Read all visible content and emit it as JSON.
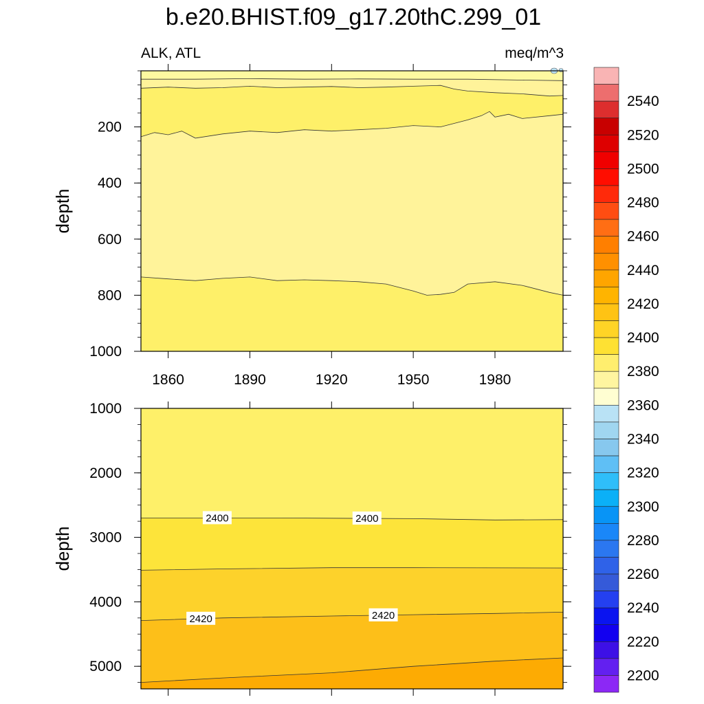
{
  "figure": {
    "title": "b.e20.BHIST.f09_g17.20thC.299_01",
    "left_string": "ALK, ATL",
    "right_string": "meq/m^3"
  },
  "chart_data": [
    {
      "type": "contour",
      "panel": "upper",
      "ylabel": "depth",
      "ylim": [
        0,
        1000
      ],
      "y_reversed": true,
      "yticks": [
        200,
        400,
        600,
        800,
        1000
      ],
      "xlim": [
        1850,
        2005
      ],
      "xticks": [
        1860,
        1890,
        1920,
        1950,
        1980
      ],
      "xtick_labels": [
        "1860",
        "1890",
        "1920",
        "1950",
        "1980"
      ],
      "contours": [
        {
          "name": "surface-band",
          "x": [
            1850,
            1870,
            1890,
            1910,
            1930,
            1950,
            1970,
            1990,
            2005
          ],
          "y": [
            30,
            30,
            28,
            30,
            29,
            30,
            30,
            33,
            35
          ]
        },
        {
          "name": "upper-2390",
          "x": [
            1850,
            1860,
            1870,
            1880,
            1890,
            1900,
            1910,
            1920,
            1930,
            1940,
            1950,
            1960,
            1965,
            1970,
            1980,
            1990,
            2000,
            2005
          ],
          "y": [
            62,
            58,
            62,
            60,
            55,
            60,
            58,
            56,
            60,
            58,
            55,
            52,
            65,
            72,
            78,
            82,
            90,
            88
          ]
        },
        {
          "name": "upper-2400",
          "x": [
            1850,
            1855,
            1860,
            1865,
            1870,
            1880,
            1890,
            1900,
            1910,
            1920,
            1930,
            1940,
            1950,
            1960,
            1970,
            1975,
            1978,
            1980,
            1985,
            1990,
            2000,
            2005
          ],
          "y": [
            235,
            220,
            228,
            215,
            240,
            225,
            215,
            220,
            210,
            215,
            210,
            205,
            195,
            200,
            175,
            160,
            145,
            165,
            155,
            170,
            160,
            155
          ]
        },
        {
          "name": "lower-2390",
          "x": [
            1850,
            1860,
            1870,
            1880,
            1890,
            1900,
            1910,
            1920,
            1930,
            1940,
            1950,
            1955,
            1960,
            1965,
            1970,
            1980,
            1990,
            2000,
            2005
          ],
          "y": [
            735,
            742,
            748,
            740,
            735,
            748,
            745,
            748,
            752,
            760,
            785,
            800,
            797,
            790,
            760,
            752,
            765,
            790,
            800
          ]
        }
      ],
      "regions": [
        {
          "from": "top",
          "to": "surface-band",
          "level_label": "2380"
        },
        {
          "from": "surface-band",
          "to": "upper-2390",
          "level_label": "2390"
        },
        {
          "from": "upper-2390",
          "to": "upper-2400",
          "level_label": "2400"
        },
        {
          "from": "upper-2400",
          "to": "lower-2390",
          "level_label": "2390"
        },
        {
          "from": "lower-2390",
          "to": "bottom",
          "level_label": "2400"
        }
      ]
    },
    {
      "type": "contour",
      "panel": "lower",
      "ylabel": "depth",
      "ylim": [
        1000,
        5350
      ],
      "y_reversed": true,
      "yticks": [
        1000,
        2000,
        3000,
        4000,
        5000
      ],
      "xlim": [
        1850,
        2005
      ],
      "xticks": [
        1860,
        1890,
        1920,
        1950,
        1980
      ],
      "contours": [
        {
          "name": "2400",
          "x": [
            1850,
            1900,
            1950,
            1980,
            2005
          ],
          "y": [
            2700,
            2700,
            2710,
            2730,
            2725
          ],
          "labels": [
            {
              "x": 1878,
              "text": "2400"
            },
            {
              "x": 1933,
              "text": "2400"
            }
          ]
        },
        {
          "name": "2410",
          "x": [
            1850,
            1880,
            1920,
            1950,
            2005
          ],
          "y": [
            3510,
            3490,
            3470,
            3470,
            3475
          ]
        },
        {
          "name": "2420",
          "x": [
            1850,
            1880,
            1920,
            1950,
            1980,
            2005
          ],
          "y": [
            4290,
            4250,
            4220,
            4200,
            4180,
            4160
          ],
          "labels": [
            {
              "x": 1872,
              "text": "2420"
            },
            {
              "x": 1939,
              "text": "2420"
            }
          ]
        },
        {
          "name": "2430",
          "x": [
            1850,
            1880,
            1920,
            1950,
            1980,
            2005
          ],
          "y": [
            5250,
            5180,
            5100,
            5000,
            4920,
            4870
          ]
        }
      ],
      "regions": [
        {
          "from": "top",
          "to": "2400",
          "level_label": "2400"
        },
        {
          "from": "2400",
          "to": "2410",
          "level_label": "2410"
        },
        {
          "from": "2410",
          "to": "2420",
          "level_label": "2420"
        },
        {
          "from": "2420",
          "to": "2430",
          "level_label": "2430"
        },
        {
          "from": "2430",
          "to": "bottom",
          "level_label": "2440"
        }
      ]
    }
  ],
  "colorbar": {
    "boxes_top_to_bottom": [
      "#f9b4b4",
      "#ed6e6e",
      "#dd2e2e",
      "#c80000",
      "#de0000",
      "#f00000",
      "#ff0d00",
      "#ff2a0a",
      "#ff4d12",
      "#ff6e14",
      "#ff7f00",
      "#ff9000",
      "#ffa500",
      "#ffb400",
      "#ffc314",
      "#ffd426",
      "#fee133",
      "#ffee6e",
      "#fff5a0",
      "#fffed2",
      "#b9e2f5",
      "#a0d6f0",
      "#87c8ee",
      "#5fbff5",
      "#2fbef9",
      "#0bb0f7",
      "#0894f6",
      "#1a87f8",
      "#2b77f0",
      "#2f62e8",
      "#355ad9",
      "#2440f0",
      "#0a14f0",
      "#1200f0",
      "#3d10e6",
      "#6320f0",
      "#8c28f5"
    ],
    "labels": [
      "2540",
      "2520",
      "2500",
      "2480",
      "2460",
      "2440",
      "2420",
      "2400",
      "2380",
      "2360",
      "2340",
      "2320",
      "2300",
      "2280",
      "2260",
      "2240",
      "2220",
      "2200"
    ]
  },
  "level_colors": {
    "2380": "#fef9a0",
    "2390": "#fff39a",
    "2400": "#fef069",
    "2410": "#fde43a",
    "2420": "#fdd22b",
    "2430": "#fdbf19",
    "2440": "#fdab03"
  },
  "sea_blue_color": "#b9e2f5"
}
